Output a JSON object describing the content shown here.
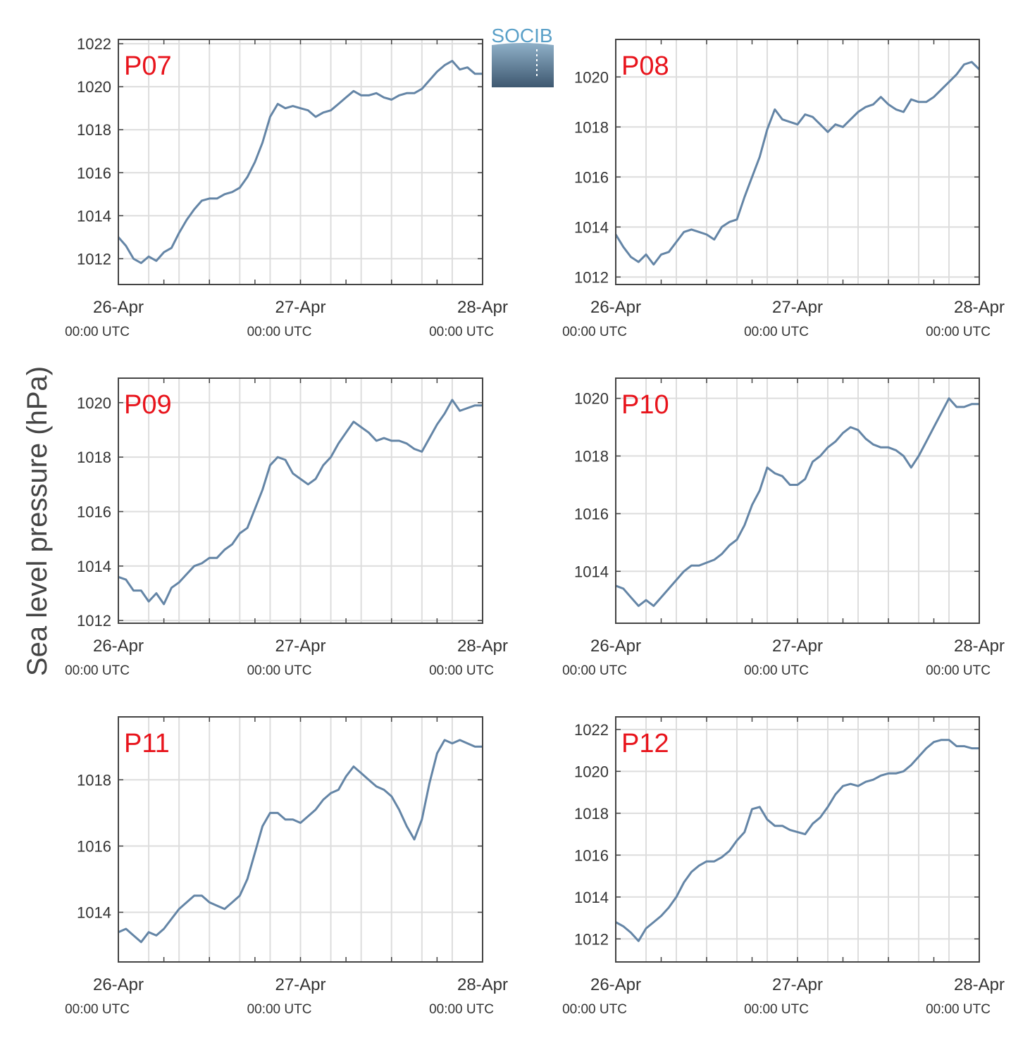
{
  "logo": {
    "text": "SOCIB"
  },
  "ylabel": "Sea level pressure (hPa)",
  "colors": {
    "line": "#6485a6",
    "panel_label": "#e8141c",
    "grid": "#dddddd",
    "axis": "#444444"
  },
  "x_ticks": [
    {
      "x": 0,
      "date": "26-Apr",
      "time": "00:00 UTC"
    },
    {
      "x": 24,
      "date": "27-Apr",
      "time": "00:00 UTC"
    },
    {
      "x": 48,
      "date": "28-Apr",
      "time": "00:00 UTC"
    }
  ],
  "x_unit": "hours since 26-Apr 00:00 UTC",
  "chart_data": [
    {
      "type": "line",
      "title": "P07",
      "xlim": [
        0,
        48
      ],
      "ylim": [
        1010.8,
        1022.2
      ],
      "yticks": [
        1012,
        1014,
        1016,
        1018,
        1020,
        1022
      ],
      "series": [
        {
          "x": [
            0,
            1,
            2,
            3,
            4,
            5,
            6,
            7,
            8,
            9,
            10,
            11,
            12,
            13,
            14,
            15,
            16,
            17,
            18,
            19,
            20,
            21,
            22,
            23,
            24,
            25,
            26,
            27,
            28,
            29,
            30,
            31,
            32,
            33,
            34,
            35,
            36,
            37,
            38,
            39,
            40,
            41,
            42,
            43,
            44,
            45,
            46,
            47,
            48
          ],
          "values": [
            1013.0,
            1012.6,
            1012.0,
            1011.8,
            1012.1,
            1011.9,
            1012.3,
            1012.5,
            1013.2,
            1013.8,
            1014.3,
            1014.7,
            1014.8,
            1014.8,
            1015.0,
            1015.1,
            1015.3,
            1015.8,
            1016.5,
            1017.4,
            1018.6,
            1019.2,
            1019.0,
            1019.1,
            1019.0,
            1018.9,
            1018.6,
            1018.8,
            1018.9,
            1019.2,
            1019.5,
            1019.8,
            1019.6,
            1019.6,
            1019.7,
            1019.5,
            1019.4,
            1019.6,
            1019.7,
            1019.7,
            1019.9,
            1020.3,
            1020.7,
            1021.0,
            1021.2,
            1020.8,
            1020.9,
            1020.6,
            1020.6
          ]
        }
      ]
    },
    {
      "type": "line",
      "title": "P08",
      "xlim": [
        0,
        48
      ],
      "ylim": [
        1011.7,
        1021.5
      ],
      "yticks": [
        1012,
        1014,
        1016,
        1018,
        1020
      ],
      "series": [
        {
          "x": [
            0,
            1,
            2,
            3,
            4,
            5,
            6,
            7,
            8,
            9,
            10,
            11,
            12,
            13,
            14,
            15,
            16,
            17,
            18,
            19,
            20,
            21,
            22,
            23,
            24,
            25,
            26,
            27,
            28,
            29,
            30,
            31,
            32,
            33,
            34,
            35,
            36,
            37,
            38,
            39,
            40,
            41,
            42,
            43,
            44,
            45,
            46,
            47,
            48
          ],
          "values": [
            1013.7,
            1013.2,
            1012.8,
            1012.6,
            1012.9,
            1012.5,
            1012.9,
            1013.0,
            1013.4,
            1013.8,
            1013.9,
            1013.8,
            1013.7,
            1013.5,
            1014.0,
            1014.2,
            1014.3,
            1015.2,
            1016.0,
            1016.8,
            1017.9,
            1018.7,
            1018.3,
            1018.2,
            1018.1,
            1018.5,
            1018.4,
            1018.1,
            1017.8,
            1018.1,
            1018.0,
            1018.3,
            1018.6,
            1018.8,
            1018.9,
            1019.2,
            1018.9,
            1018.7,
            1018.6,
            1019.1,
            1019.0,
            1019.0,
            1019.2,
            1019.5,
            1019.8,
            1020.1,
            1020.5,
            1020.6,
            1020.3
          ]
        }
      ]
    },
    {
      "type": "line",
      "title": "P09",
      "xlim": [
        0,
        48
      ],
      "ylim": [
        1011.9,
        1020.9
      ],
      "yticks": [
        1012,
        1014,
        1016,
        1018,
        1020
      ],
      "series": [
        {
          "x": [
            0,
            1,
            2,
            3,
            4,
            5,
            6,
            7,
            8,
            9,
            10,
            11,
            12,
            13,
            14,
            15,
            16,
            17,
            18,
            19,
            20,
            21,
            22,
            23,
            24,
            25,
            26,
            27,
            28,
            29,
            30,
            31,
            32,
            33,
            34,
            35,
            36,
            37,
            38,
            39,
            40,
            41,
            42,
            43,
            44,
            45,
            46,
            47,
            48
          ],
          "values": [
            1013.6,
            1013.5,
            1013.1,
            1013.1,
            1012.7,
            1013.0,
            1012.6,
            1013.2,
            1013.4,
            1013.7,
            1014.0,
            1014.1,
            1014.3,
            1014.3,
            1014.6,
            1014.8,
            1015.2,
            1015.4,
            1016.1,
            1016.8,
            1017.7,
            1018.0,
            1017.9,
            1017.4,
            1017.2,
            1017.0,
            1017.2,
            1017.7,
            1018.0,
            1018.5,
            1018.9,
            1019.3,
            1019.1,
            1018.9,
            1018.6,
            1018.7,
            1018.6,
            1018.6,
            1018.5,
            1018.3,
            1018.2,
            1018.7,
            1019.2,
            1019.6,
            1020.1,
            1019.7,
            1019.8,
            1019.9,
            1019.9
          ]
        }
      ]
    },
    {
      "type": "line",
      "title": "P10",
      "xlim": [
        0,
        48
      ],
      "ylim": [
        1012.2,
        1020.7
      ],
      "yticks": [
        1014,
        1016,
        1018,
        1020
      ],
      "series": [
        {
          "x": [
            0,
            1,
            2,
            3,
            4,
            5,
            6,
            7,
            8,
            9,
            10,
            11,
            12,
            13,
            14,
            15,
            16,
            17,
            18,
            19,
            20,
            21,
            22,
            23,
            24,
            25,
            26,
            27,
            28,
            29,
            30,
            31,
            32,
            33,
            34,
            35,
            36,
            37,
            38,
            39,
            40,
            41,
            42,
            43,
            44,
            45,
            46,
            47,
            48
          ],
          "values": [
            1013.5,
            1013.4,
            1013.1,
            1012.8,
            1013.0,
            1012.8,
            1013.1,
            1013.4,
            1013.7,
            1014.0,
            1014.2,
            1014.2,
            1014.3,
            1014.4,
            1014.6,
            1014.9,
            1015.1,
            1015.6,
            1016.3,
            1016.8,
            1017.6,
            1017.4,
            1017.3,
            1017.0,
            1017.0,
            1017.2,
            1017.8,
            1018.0,
            1018.3,
            1018.5,
            1018.8,
            1019.0,
            1018.9,
            1018.6,
            1018.4,
            1018.3,
            1018.3,
            1018.2,
            1018.0,
            1017.6,
            1018.0,
            1018.5,
            1019.0,
            1019.5,
            1020.0,
            1019.7,
            1019.7,
            1019.8,
            1019.8
          ]
        }
      ]
    },
    {
      "type": "line",
      "title": "P11",
      "xlim": [
        0,
        48
      ],
      "ylim": [
        1012.5,
        1019.9
      ],
      "yticks": [
        1014,
        1016,
        1018
      ],
      "series": [
        {
          "x": [
            0,
            1,
            2,
            3,
            4,
            5,
            6,
            7,
            8,
            9,
            10,
            11,
            12,
            13,
            14,
            15,
            16,
            17,
            18,
            19,
            20,
            21,
            22,
            23,
            24,
            25,
            26,
            27,
            28,
            29,
            30,
            31,
            32,
            33,
            34,
            35,
            36,
            37,
            38,
            39,
            40,
            41,
            42,
            43,
            44,
            45,
            46,
            47,
            48
          ],
          "values": [
            1013.4,
            1013.5,
            1013.3,
            1013.1,
            1013.4,
            1013.3,
            1013.5,
            1013.8,
            1014.1,
            1014.3,
            1014.5,
            1014.5,
            1014.3,
            1014.2,
            1014.1,
            1014.3,
            1014.5,
            1015.0,
            1015.8,
            1016.6,
            1017.0,
            1017.0,
            1016.8,
            1016.8,
            1016.7,
            1016.9,
            1017.1,
            1017.4,
            1017.6,
            1017.7,
            1018.1,
            1018.4,
            1018.2,
            1018.0,
            1017.8,
            1017.7,
            1017.5,
            1017.1,
            1016.6,
            1016.2,
            1016.8,
            1017.9,
            1018.8,
            1019.2,
            1019.1,
            1019.2,
            1019.1,
            1019.0,
            1019.0
          ]
        }
      ]
    },
    {
      "type": "line",
      "title": "P12",
      "xlim": [
        0,
        48
      ],
      "ylim": [
        1010.9,
        1022.6
      ],
      "yticks": [
        1012,
        1014,
        1016,
        1018,
        1020,
        1022
      ],
      "series": [
        {
          "x": [
            0,
            1,
            2,
            3,
            4,
            5,
            6,
            7,
            8,
            9,
            10,
            11,
            12,
            13,
            14,
            15,
            16,
            17,
            18,
            19,
            20,
            21,
            22,
            23,
            24,
            25,
            26,
            27,
            28,
            29,
            30,
            31,
            32,
            33,
            34,
            35,
            36,
            37,
            38,
            39,
            40,
            41,
            42,
            43,
            44,
            45,
            46,
            47,
            48
          ],
          "values": [
            1012.8,
            1012.6,
            1012.3,
            1011.9,
            1012.5,
            1012.8,
            1013.1,
            1013.5,
            1014.0,
            1014.7,
            1015.2,
            1015.5,
            1015.7,
            1015.7,
            1015.9,
            1016.2,
            1016.7,
            1017.1,
            1018.2,
            1018.3,
            1017.7,
            1017.4,
            1017.4,
            1017.2,
            1017.1,
            1017.0,
            1017.5,
            1017.8,
            1018.3,
            1018.9,
            1019.3,
            1019.4,
            1019.3,
            1019.5,
            1019.6,
            1019.8,
            1019.9,
            1019.9,
            1020.0,
            1020.3,
            1020.7,
            1021.1,
            1021.4,
            1021.5,
            1021.5,
            1021.2,
            1021.2,
            1021.1,
            1021.1
          ]
        }
      ]
    }
  ]
}
